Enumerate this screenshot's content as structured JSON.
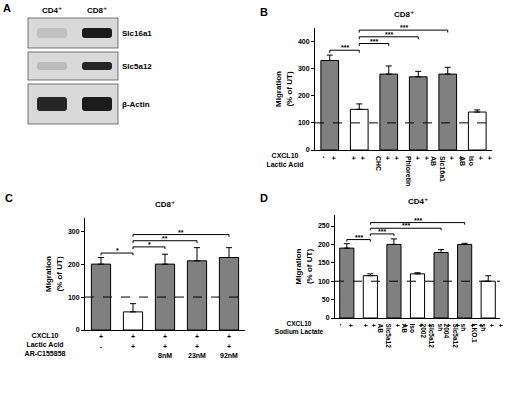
{
  "blot": {
    "panel_label": "A",
    "lanes": [
      "CD4⁺",
      "CD8⁺"
    ],
    "rows": [
      "Slc16a1",
      "Slc5a12",
      "β-Actin"
    ]
  },
  "chart_data": [
    {
      "panel_label": "B",
      "type": "bar",
      "title": "CD8⁺",
      "y_label": "Migration\n(% of UT)",
      "categories": [
        null,
        null,
        "CHC",
        "Phloretin",
        "Slc16a1\nAB",
        "Iso\nAB"
      ],
      "values": [
        330,
        150,
        280,
        270,
        280,
        140
      ],
      "errors": [
        20,
        20,
        30,
        20,
        25,
        8
      ],
      "colors": [
        "#808080",
        "#ffffff",
        "#808080",
        "#808080",
        "#808080",
        "#ffffff"
      ],
      "conditions": [
        {
          "name": "CXCL10",
          "signs": [
            "+",
            "+",
            "+",
            "+",
            "+",
            "+"
          ]
        },
        {
          "name": "Lactic Acid",
          "signs": [
            "-",
            "+",
            "+",
            "+",
            "+",
            "+"
          ]
        }
      ],
      "reference_line": 100,
      "significance": [
        {
          "from": 1,
          "to": 0,
          "label": "***"
        },
        {
          "from": 1,
          "to": 2,
          "label": "***"
        },
        {
          "from": 1,
          "to": 3,
          "label": "***"
        },
        {
          "from": 1,
          "to": 4,
          "label": "***"
        }
      ],
      "ylim": [
        0,
        450
      ],
      "yticks": [
        0,
        100,
        200,
        300,
        400
      ]
    },
    {
      "panel_label": "C",
      "type": "bar",
      "title": "CD8⁺",
      "y_label": "Migration\n(% of UT)",
      "categories": [
        null,
        null,
        null,
        null,
        null
      ],
      "values": [
        200,
        55,
        200,
        210,
        220
      ],
      "errors": [
        20,
        25,
        30,
        40,
        30
      ],
      "colors": [
        "#808080",
        "#ffffff",
        "#808080",
        "#808080",
        "#808080"
      ],
      "conditions": [
        {
          "name": "CXCL10",
          "signs": [
            "+",
            "+",
            "+",
            "+",
            "+"
          ]
        },
        {
          "name": "Lactic Acid",
          "signs": [
            "-",
            "+",
            "+",
            "+",
            "+"
          ]
        },
        {
          "name": "AR-C155858",
          "signs": [
            null,
            null,
            "8nM",
            "23nM",
            "92nM"
          ]
        }
      ],
      "reference_line": 100,
      "significance": [
        {
          "from": 1,
          "to": 0,
          "label": "*"
        },
        {
          "from": 1,
          "to": 2,
          "label": "*"
        },
        {
          "from": 1,
          "to": 3,
          "label": "**"
        },
        {
          "from": 1,
          "to": 4,
          "label": "**"
        }
      ],
      "ylim": [
        0,
        340
      ],
      "yticks": [
        0,
        100,
        200,
        300
      ]
    },
    {
      "panel_label": "D",
      "type": "bar",
      "title": "CD4⁺",
      "y_label": "Migration\n(% of UT)",
      "categories": [
        null,
        null,
        "Slc5a12\nAB",
        "Iso\nAB",
        "sh\nSlc5a12\n2002",
        "sh\nSlc5a12\n2004",
        "sh\nLKO.1"
      ],
      "values": [
        190,
        115,
        200,
        120,
        178,
        200,
        100
      ],
      "errors": [
        12,
        5,
        15,
        3,
        8,
        3,
        15
      ],
      "colors": [
        "#808080",
        "#ffffff",
        "#808080",
        "#ffffff",
        "#808080",
        "#808080",
        "#ffffff"
      ],
      "conditions": [
        {
          "name": "CXCL10",
          "signs": [
            "+",
            "+",
            "+",
            "+",
            "+",
            "+",
            "+"
          ]
        },
        {
          "name": "Sodium Lactate",
          "signs": [
            "-",
            "+",
            "+",
            "+",
            "+",
            "+",
            "+"
          ]
        }
      ],
      "reference_line": 100,
      "significance": [
        {
          "from": 1,
          "to": 0,
          "label": "***"
        },
        {
          "from": 1,
          "to": 2,
          "label": "***"
        },
        {
          "from": 1,
          "to": 4,
          "label": "***"
        },
        {
          "from": 1,
          "to": 5,
          "label": "***"
        }
      ],
      "ylim": [
        0,
        280
      ],
      "yticks": [
        0,
        50,
        100,
        150,
        200,
        250
      ]
    }
  ]
}
